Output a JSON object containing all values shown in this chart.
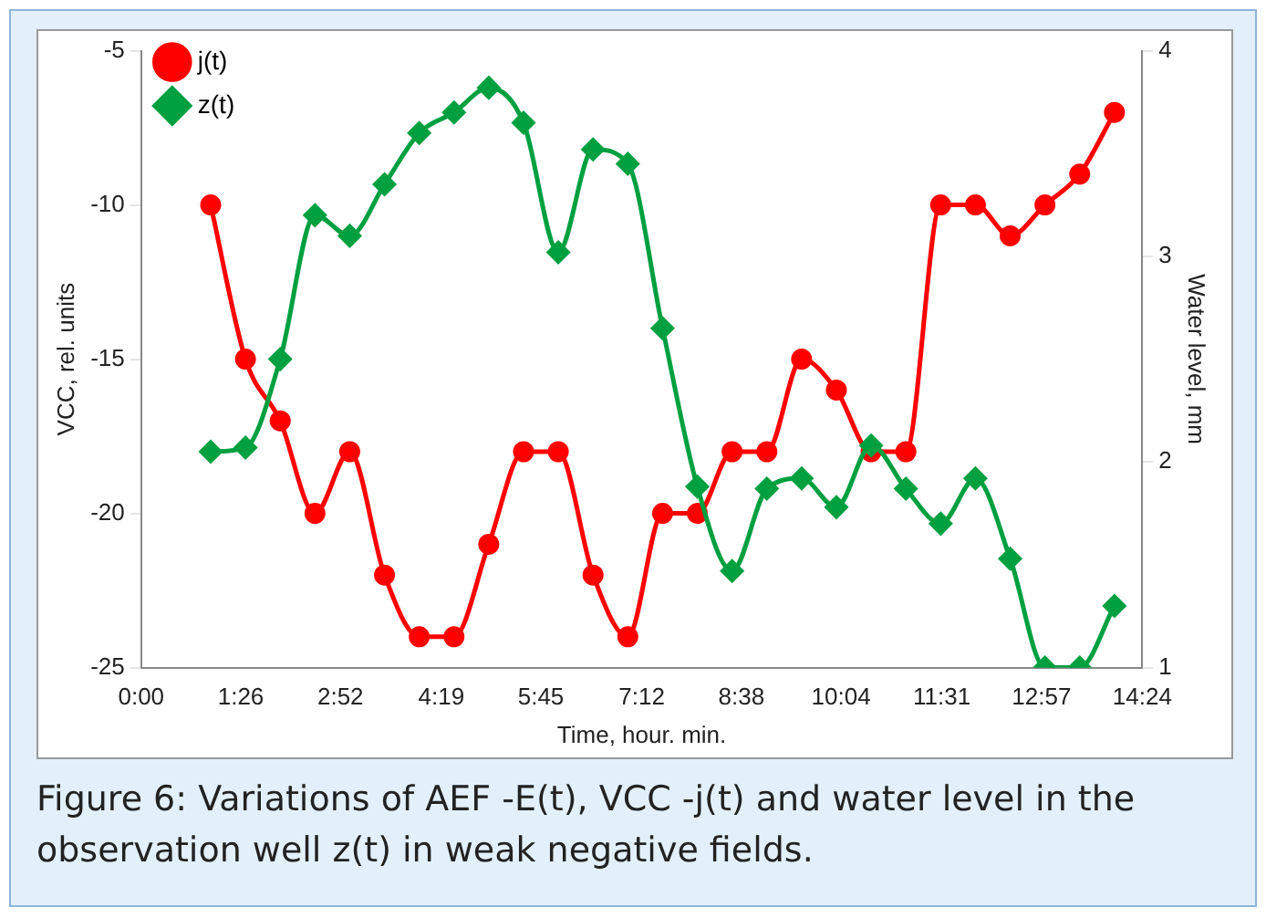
{
  "chart_data": {
    "type": "line",
    "xlabel": "Time, hour. min.",
    "ylabel": "VCC, rel. units",
    "y2label": "Water level, mm",
    "x": [
      1,
      1.5,
      2,
      2.5,
      3,
      3.5,
      4,
      4.5,
      5,
      5.5,
      6,
      6.5,
      7,
      7.5,
      8,
      8.5,
      9,
      9.5,
      10,
      10.5,
      11,
      11.5,
      12,
      12.5,
      13,
      13.5,
      14
    ],
    "series": [
      {
        "name": "j(t)",
        "color": "#ff0000",
        "marker": "circle",
        "values": [
          -10,
          -15,
          -17,
          -20,
          -18,
          -22,
          -24,
          -24,
          -21,
          -18,
          -18,
          -22,
          -24,
          -20,
          -20,
          -18,
          -18,
          -15,
          -16,
          -18,
          -18,
          -10,
          -10,
          -11,
          -10,
          -9,
          -7
        ]
      },
      {
        "name": "z(t)",
        "color": "#00a040",
        "marker": "diamond",
        "axis": "y2",
        "values": [
          2.05,
          2.07,
          2.5,
          3.2,
          3.1,
          3.35,
          3.6,
          3.7,
          3.82,
          3.65,
          3.02,
          3.52,
          3.45,
          2.65,
          1.88,
          1.47,
          1.87,
          1.92,
          1.78,
          2.08,
          1.87,
          1.7,
          1.92,
          1.53,
          1,
          1,
          1.3
        ]
      }
    ],
    "xlim": [
      0,
      14.4
    ],
    "xticks": [
      {
        "value": 0,
        "label": "0:00"
      },
      {
        "value": 1.4333,
        "label": "1:26"
      },
      {
        "value": 2.8667,
        "label": "2:52"
      },
      {
        "value": 4.3167,
        "label": "4:19"
      },
      {
        "value": 5.75,
        "label": "5:45"
      },
      {
        "value": 7.2,
        "label": "7:12"
      },
      {
        "value": 8.6333,
        "label": "8:38"
      },
      {
        "value": 10.0667,
        "label": "10:04"
      },
      {
        "value": 11.5167,
        "label": "11:31"
      },
      {
        "value": 12.95,
        "label": "12:57"
      },
      {
        "value": 14.4,
        "label": "14:24"
      }
    ],
    "ylim": [
      -25,
      -5
    ],
    "yticks": [
      -25,
      -20,
      -15,
      -10,
      -5
    ],
    "y2lim": [
      1,
      4
    ],
    "y2ticks": [
      1,
      2,
      3,
      4
    ],
    "grid": false,
    "legend": "top",
    "line_style": "solid",
    "annotations": [
      "Figure 6: Variations of AEF -E(t), VCC -j(t) and water level in the observation well z(t) in weak negative fields."
    ]
  }
}
